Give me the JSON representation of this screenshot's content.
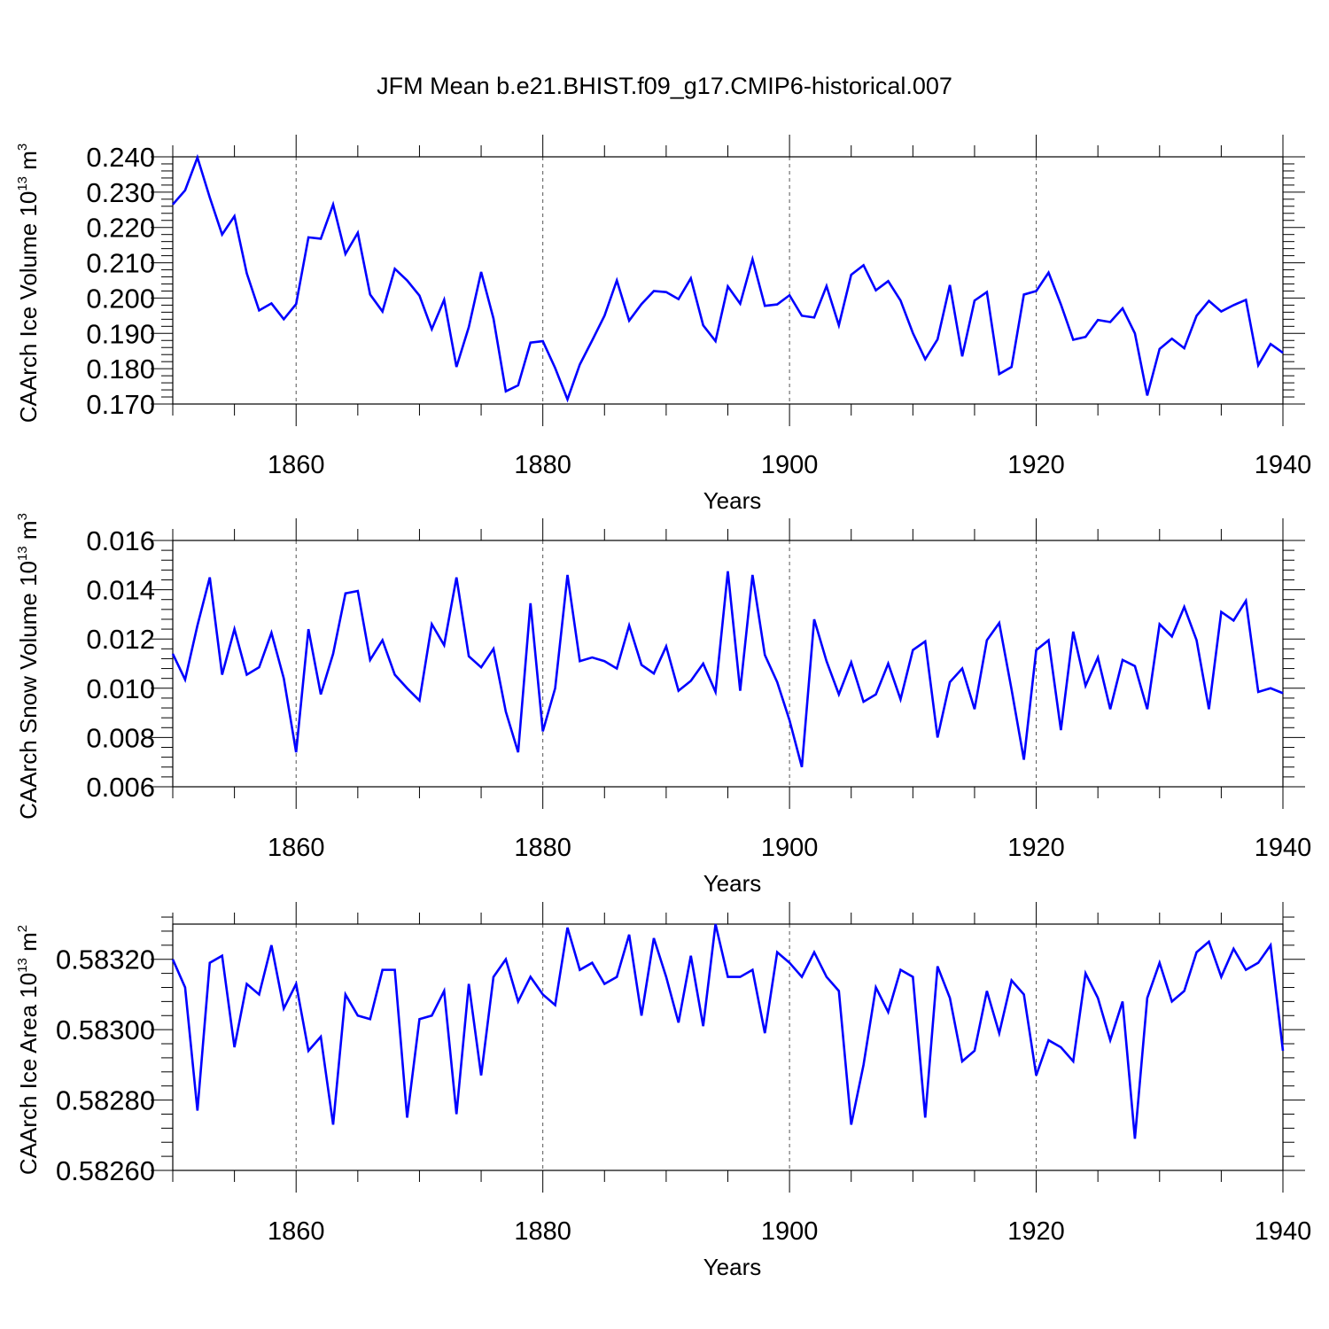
{
  "chart_data": [
    {
      "type": "line",
      "title": "JFM Mean b.e21.BHIST.f09_g17.CMIP6-historical.007",
      "ylabel_text": "CAArch Ice Volume 10",
      "ylabel_exp": "13",
      "ylabel_unit": " m",
      "ylabel_unit_exp": "3",
      "xlabel": "Years",
      "xlim": [
        1850,
        1940
      ],
      "ylim": [
        0.17,
        0.24
      ],
      "xticks": [
        1860,
        1880,
        1900,
        1920,
        1940
      ],
      "yticks": [
        "0.170",
        "0.180",
        "0.190",
        "0.200",
        "0.210",
        "0.220",
        "0.230",
        "0.240"
      ],
      "series": [
        {
          "name": "Ice Volume",
          "color": "#0000ff",
          "start_year": 1850,
          "values": [
            0.2265,
            0.2305,
            0.2398,
            0.2285,
            0.218,
            0.2232,
            0.207,
            0.1965,
            0.1985,
            0.194,
            0.1983,
            0.2172,
            0.2168,
            0.2265,
            0.2125,
            0.2185,
            0.201,
            0.1962,
            0.2083,
            0.205,
            0.2007,
            0.1912,
            0.1995,
            0.1805,
            0.1918,
            0.2074,
            0.1942,
            0.1736,
            0.1753,
            0.1874,
            0.1878,
            0.1802,
            0.1713,
            0.1812,
            0.188,
            0.195,
            0.205,
            0.1936,
            0.1983,
            0.202,
            0.2017,
            0.1997,
            0.2056,
            0.1923,
            0.1878,
            0.2033,
            0.1984,
            0.211,
            0.1978,
            0.1982,
            0.2008,
            0.195,
            0.1945,
            0.2034,
            0.1923,
            0.2066,
            0.2093,
            0.2022,
            0.2048,
            0.1993,
            0.1901,
            0.1827,
            0.1883,
            0.2037,
            0.1835,
            0.1993,
            0.2017,
            0.1785,
            0.1805,
            0.201,
            0.202,
            0.2072,
            0.1982,
            0.1882,
            0.189,
            0.1938,
            0.1932,
            0.1971,
            0.19,
            0.1724,
            0.1856,
            0.1885,
            0.1858,
            0.195,
            0.1992,
            0.1962,
            0.198,
            0.1995,
            0.181,
            0.187,
            0.1845
          ]
        }
      ]
    },
    {
      "type": "line",
      "ylabel_text": "CAArch Snow Volume 10",
      "ylabel_exp": "13",
      "ylabel_unit": " m",
      "ylabel_unit_exp": "3",
      "xlabel": "Years",
      "xlim": [
        1850,
        1940
      ],
      "ylim": [
        0.006,
        0.016
      ],
      "xticks": [
        1860,
        1880,
        1900,
        1920,
        1940
      ],
      "yticks": [
        "0.006",
        "0.008",
        "0.010",
        "0.012",
        "0.014",
        "0.016"
      ],
      "series": [
        {
          "name": "Snow Volume",
          "color": "#0000ff",
          "start_year": 1850,
          "values": [
            0.0114,
            0.01035,
            0.01255,
            0.0145,
            0.01055,
            0.0124,
            0.01055,
            0.01085,
            0.01225,
            0.0104,
            0.0074,
            0.0124,
            0.00975,
            0.0114,
            0.01385,
            0.01395,
            0.01115,
            0.01195,
            0.01055,
            0.01,
            0.0095,
            0.0126,
            0.01175,
            0.0145,
            0.0113,
            0.01085,
            0.0116,
            0.00905,
            0.0074,
            0.01345,
            0.00825,
            0.01,
            0.0146,
            0.0111,
            0.01125,
            0.0111,
            0.0108,
            0.01255,
            0.01095,
            0.0106,
            0.0117,
            0.0099,
            0.0103,
            0.011,
            0.00985,
            0.01475,
            0.0099,
            0.0146,
            0.01135,
            0.01025,
            0.0087,
            0.0068,
            0.0128,
            0.0111,
            0.00975,
            0.01105,
            0.00945,
            0.00975,
            0.011,
            0.00955,
            0.01155,
            0.0119,
            0.008,
            0.01025,
            0.0108,
            0.00915,
            0.01195,
            0.01265,
            0.00995,
            0.0071,
            0.01155,
            0.01195,
            0.0083,
            0.0123,
            0.0101,
            0.01125,
            0.00915,
            0.01115,
            0.0109,
            0.00915,
            0.0126,
            0.0121,
            0.0133,
            0.01195,
            0.00915,
            0.0131,
            0.01275,
            0.01355,
            0.00985,
            0.01,
            0.0098
          ]
        }
      ]
    },
    {
      "type": "line",
      "ylabel_text": "CAArch Ice Area 10",
      "ylabel_exp": "13",
      "ylabel_unit": " m",
      "ylabel_unit_exp": "2",
      "xlabel": "Years",
      "xlim": [
        1850,
        1940
      ],
      "ylim": [
        0.5826,
        0.5833
      ],
      "xticks": [
        1860,
        1880,
        1900,
        1920,
        1940
      ],
      "yticks": [
        "0.58260",
        "0.58280",
        "0.58300",
        "0.58320"
      ],
      "series": [
        {
          "name": "Ice Area",
          "color": "#0000ff",
          "start_year": 1850,
          "values": [
            0.5832,
            0.58312,
            0.58277,
            0.58319,
            0.58321,
            0.58295,
            0.58313,
            0.5831,
            0.58324,
            0.58306,
            0.58313,
            0.58294,
            0.58298,
            0.58273,
            0.5831,
            0.58304,
            0.58303,
            0.58317,
            0.58317,
            0.58275,
            0.58303,
            0.58304,
            0.58311,
            0.58276,
            0.58313,
            0.58287,
            0.58315,
            0.5832,
            0.58308,
            0.58315,
            0.5831,
            0.58307,
            0.58329,
            0.58317,
            0.58319,
            0.58313,
            0.58315,
            0.58327,
            0.58304,
            0.58326,
            0.58315,
            0.58302,
            0.58321,
            0.58301,
            0.5833,
            0.58315,
            0.58315,
            0.58317,
            0.58299,
            0.58322,
            0.58319,
            0.58315,
            0.58322,
            0.58315,
            0.58311,
            0.58273,
            0.5829,
            0.58312,
            0.58305,
            0.58317,
            0.58315,
            0.58275,
            0.58318,
            0.58309,
            0.58291,
            0.58294,
            0.58311,
            0.58299,
            0.58314,
            0.5831,
            0.58287,
            0.58297,
            0.58295,
            0.58291,
            0.58316,
            0.58309,
            0.58297,
            0.58308,
            0.58269,
            0.58309,
            0.58319,
            0.58308,
            0.58311,
            0.58322,
            0.58325,
            0.58315,
            0.58323,
            0.58317,
            0.58319,
            0.58324,
            0.58294
          ]
        }
      ]
    }
  ]
}
